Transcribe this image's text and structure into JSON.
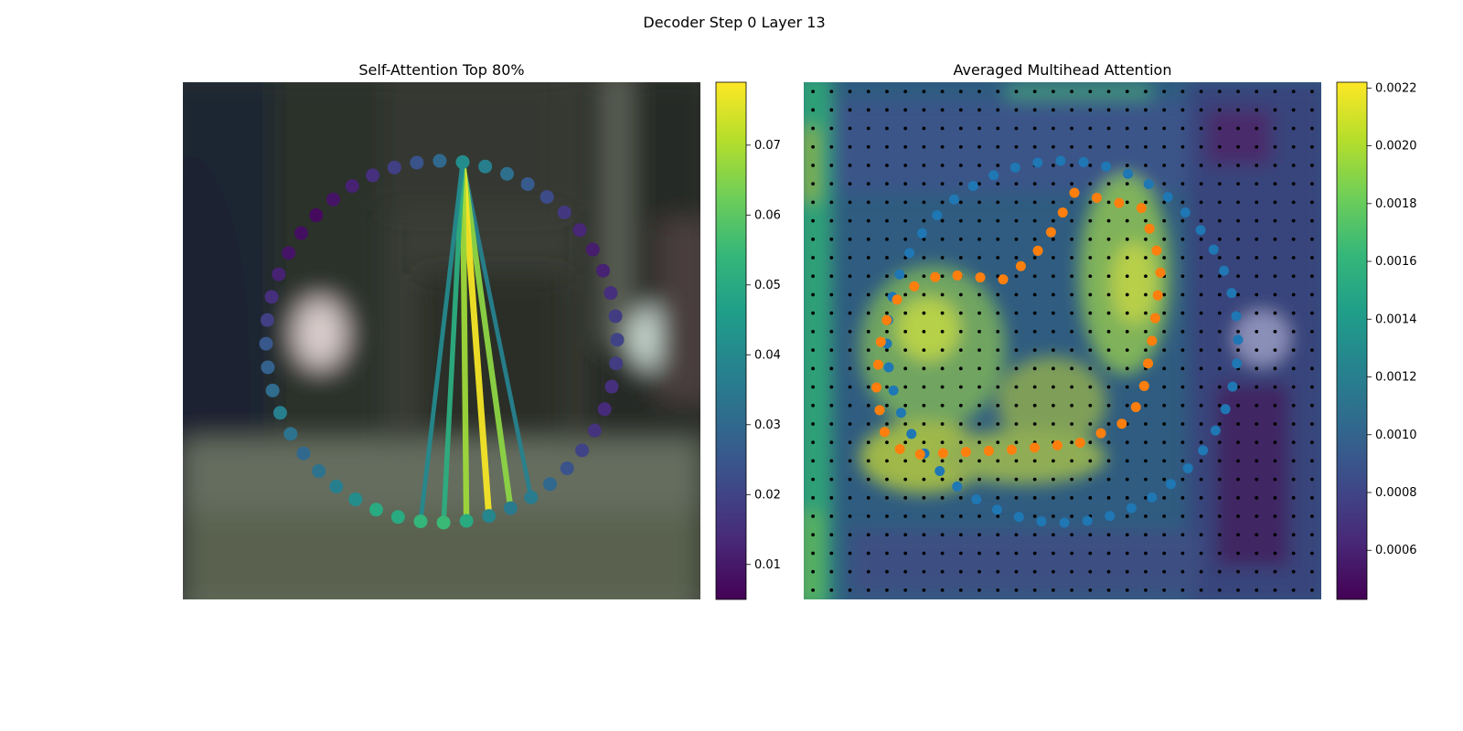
{
  "figure": {
    "title": "Decoder Step 0 Layer 13"
  },
  "colors": {
    "viridis": [
      "#440154",
      "#482878",
      "#3e4a89",
      "#31688e",
      "#26828e",
      "#1f9e89",
      "#35b779",
      "#6ece58",
      "#b5de2b",
      "#fde725"
    ],
    "blue_points": "#1f77b4",
    "orange_points": "#ff7f0e",
    "grid_dots": "#000000"
  },
  "chart_data": [
    {
      "type": "scatter",
      "title": "Self-Attention Top 80%",
      "description_of_points": "48 points arranged on a ring over a blurred photo; each point colored by attention weight",
      "ring_weights": [
        0.041,
        0.037,
        0.032,
        0.026,
        0.022,
        0.017,
        0.013,
        0.011,
        0.012,
        0.015,
        0.018,
        0.02,
        0.018,
        0.015,
        0.014,
        0.016,
        0.02,
        0.024,
        0.03,
        0.036,
        0.035,
        0.039,
        0.05,
        0.055,
        0.054,
        0.05,
        0.05,
        0.041,
        0.037,
        0.033,
        0.03,
        0.033,
        0.037,
        0.031,
        0.028,
        0.025,
        0.019,
        0.015,
        0.012,
        0.009,
        0.008,
        0.007,
        0.009,
        0.012,
        0.015,
        0.019,
        0.024,
        0.03
      ],
      "connections": [
        {
          "from_point": 0,
          "to_point": 19,
          "weight": 0.038
        },
        {
          "from_point": 0,
          "to_point": 20,
          "weight": 0.066
        },
        {
          "from_point": 0,
          "to_point": 21,
          "weight": 0.078
        },
        {
          "from_point": 0,
          "to_point": 22,
          "weight": 0.068
        },
        {
          "from_point": 0,
          "to_point": 23,
          "weight": 0.051
        },
        {
          "from_point": 0,
          "to_point": 24,
          "weight": 0.04
        }
      ],
      "colorbar": {
        "colormap": "viridis",
        "range": [
          0.005,
          0.079
        ],
        "ticks": [
          0.01,
          0.02,
          0.03,
          0.04,
          0.05,
          0.06,
          0.07
        ],
        "tick_labels": [
          "0.01",
          "0.02",
          "0.03",
          "0.04",
          "0.05",
          "0.06",
          "0.07"
        ]
      }
    },
    {
      "type": "heatmap",
      "title": "Averaged Multihead Attention",
      "grid_size": [
        28,
        28
      ],
      "overlay_series": [
        {
          "marker": "black grid dots",
          "count": 784
        },
        {
          "marker": "blue ring points",
          "count": 48
        },
        {
          "marker": "orange contour points",
          "count": 40
        }
      ],
      "colorbar": {
        "colormap": "viridis",
        "range": [
          0.00043,
          0.00222
        ],
        "ticks": [
          0.0006,
          0.0008,
          0.001,
          0.0012,
          0.0014,
          0.0016,
          0.0018,
          0.002,
          0.0022
        ],
        "tick_labels": [
          "0.0006",
          "0.0008",
          "0.0010",
          "0.0012",
          "0.0014",
          "0.0016",
          "0.0018",
          "0.0020",
          "0.0022"
        ]
      }
    }
  ]
}
